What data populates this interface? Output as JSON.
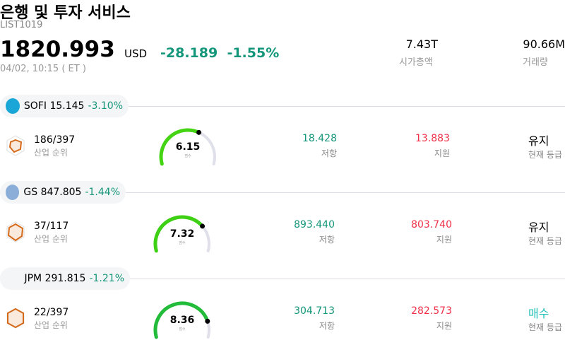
{
  "header": {
    "title": "은행 및 투자 서비스",
    "ticker": "LIST1019",
    "price": "1820.993",
    "currency": "USD",
    "change": "-28.189",
    "change_pct": "-1.55%",
    "time": "04/02, 10:15  ( ET )",
    "stats": [
      {
        "value": "7.43T",
        "label": "시가총액"
      },
      {
        "value": "90.66M",
        "label": "거래량"
      }
    ]
  },
  "colors": {
    "up": "#14967a",
    "down": "#f03048",
    "gauge_track": "#e0e0ea"
  },
  "stocks": [
    {
      "symbol": "SOFI",
      "price": "15.145",
      "change_pct": "-3.10%",
      "logo_text": "SoFi",
      "logo_color": "#1aa6d6",
      "rank": "186/397",
      "rank_label": "산업 순위",
      "score": 6.15,
      "score_text": "6.15",
      "score_label": "점수",
      "gauge_color": "#44d414",
      "resistance": "18.428",
      "resistance_label": "저항",
      "support": "13.883",
      "support_label": "지원",
      "grade": "유지",
      "grade_label": "현재 등급",
      "grade_color": "#000000"
    },
    {
      "symbol": "GS",
      "price": "847.805",
      "change_pct": "-1.44%",
      "logo_text": "GS",
      "logo_color": "#8aaed8",
      "rank": "37/117",
      "rank_label": "산업 순위",
      "score": 7.32,
      "score_text": "7.32",
      "score_label": "점수",
      "gauge_color": "#3ed014",
      "resistance": "893.440",
      "resistance_label": "저항",
      "support": "803.740",
      "support_label": "지원",
      "grade": "유지",
      "grade_label": "현재 등급",
      "grade_color": "#000000"
    },
    {
      "symbol": "JPM",
      "price": "291.815",
      "change_pct": "-1.21%",
      "logo_text": "JPM",
      "logo_color": "#f4f5f6",
      "rank": "22/397",
      "rank_label": "산업 순위",
      "score": 8.36,
      "score_text": "8.36",
      "score_label": "점수",
      "gauge_color": "#22bb3a",
      "resistance": "304.713",
      "resistance_label": "저항",
      "support": "282.573",
      "support_label": "지원",
      "grade": "매수",
      "grade_label": "현재 등급",
      "grade_color": "#20c0b8"
    }
  ]
}
